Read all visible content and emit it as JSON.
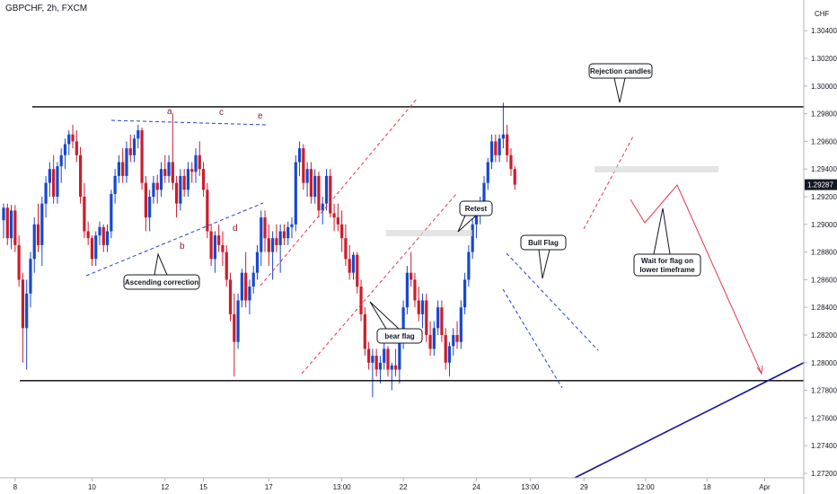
{
  "header": {
    "symbol_title": "GBPCHF, 2h, FXCM"
  },
  "chart_data": {
    "type": "candlestick",
    "symbol": "GBPCHF",
    "timeframe": "2h",
    "broker": "FXCM",
    "currency_label": "CHF",
    "last_price": 1.29287,
    "last_price_label": "1.29287",
    "ylim": [
      1.271,
      1.314
    ],
    "y_ticks": [
      1.272,
      1.274,
      1.276,
      1.278,
      1.28,
      1.282,
      1.284,
      1.286,
      1.288,
      1.29,
      1.292,
      1.294,
      1.296,
      1.298,
      1.3,
      1.302,
      1.304
    ],
    "y_tick_labels": [
      "1.27200",
      "1.27400",
      "1.27600",
      "1.27800",
      "1.28000",
      "1.28200",
      "1.28400",
      "1.28600",
      "1.28800",
      "1.29000",
      "1.29200",
      "1.29400",
      "1.29600",
      "1.29800",
      "1.30000",
      "1.30200",
      "1.30400"
    ],
    "x_ticks": [
      {
        "label": "8",
        "bar": 3
      },
      {
        "label": "10",
        "bar": 23
      },
      {
        "label": "12",
        "bar": 42
      },
      {
        "label": "15",
        "bar": 52
      },
      {
        "label": "17",
        "bar": 69
      },
      {
        "label": "13:00",
        "bar": 88
      },
      {
        "label": "22",
        "bar": 104
      },
      {
        "label": "24",
        "bar": 123
      },
      {
        "label": "13:00",
        "bar": 137
      },
      {
        "label": "29",
        "bar": 151
      },
      {
        "label": "12:00",
        "bar": 167
      },
      {
        "label": "18",
        "bar": 183
      },
      {
        "label": "Apr",
        "bar": 198
      }
    ],
    "candles": [
      [
        1.2903,
        1.2915,
        1.289,
        1.2912
      ],
      [
        1.2912,
        1.2915,
        1.2885,
        1.289
      ],
      [
        1.289,
        1.2914,
        1.2882,
        1.291
      ],
      [
        1.291,
        1.2914,
        1.288,
        1.2885
      ],
      [
        1.2885,
        1.2892,
        1.2855,
        1.286
      ],
      [
        1.286,
        1.2865,
        1.28,
        1.2825
      ],
      [
        1.2825,
        1.286,
        1.2795,
        1.285
      ],
      [
        1.285,
        1.288,
        1.284,
        1.2875
      ],
      [
        1.2875,
        1.2905,
        1.2865,
        1.29
      ],
      [
        1.29,
        1.2915,
        1.288,
        1.2885
      ],
      [
        1.2885,
        1.292,
        1.287,
        1.2915
      ],
      [
        1.2915,
        1.2935,
        1.2905,
        1.293
      ],
      [
        1.293,
        1.2945,
        1.292,
        1.294
      ],
      [
        1.294,
        1.295,
        1.2915,
        1.292
      ],
      [
        1.292,
        1.2945,
        1.2915,
        1.2942
      ],
      [
        1.2942,
        1.2955,
        1.293,
        1.295
      ],
      [
        1.295,
        1.2962,
        1.294,
        1.2958
      ],
      [
        1.2958,
        1.2968,
        1.295,
        1.2965
      ],
      [
        1.2965,
        1.2972,
        1.2955,
        1.296
      ],
      [
        1.296,
        1.2968,
        1.2945,
        1.295
      ],
      [
        1.295,
        1.2956,
        1.2915,
        1.292
      ],
      [
        1.292,
        1.293,
        1.289,
        1.2895
      ],
      [
        1.2895,
        1.2902,
        1.2885,
        1.289
      ],
      [
        1.289,
        1.2892,
        1.287,
        1.2875
      ],
      [
        1.2875,
        1.2895,
        1.287,
        1.2892
      ],
      [
        1.2892,
        1.2902,
        1.2885,
        1.2898
      ],
      [
        1.2898,
        1.29,
        1.288,
        1.2885
      ],
      [
        1.2885,
        1.29,
        1.288,
        1.2895
      ],
      [
        1.2895,
        1.2925,
        1.289,
        1.2922
      ],
      [
        1.2922,
        1.294,
        1.2915,
        1.2935
      ],
      [
        1.2935,
        1.295,
        1.293,
        1.2945
      ],
      [
        1.2945,
        1.2955,
        1.293,
        1.2935
      ],
      [
        1.2935,
        1.296,
        1.293,
        1.2955
      ],
      [
        1.2955,
        1.2965,
        1.2945,
        1.295
      ],
      [
        1.295,
        1.2965,
        1.2945,
        1.2962
      ],
      [
        1.2962,
        1.2972,
        1.2955,
        1.2968
      ],
      [
        1.2968,
        1.297,
        1.2925,
        1.293
      ],
      [
        1.293,
        1.2935,
        1.2895,
        1.2905
      ],
      [
        1.2905,
        1.2925,
        1.2895,
        1.292
      ],
      [
        1.292,
        1.2935,
        1.2915,
        1.293
      ],
      [
        1.293,
        1.2936,
        1.2915,
        1.2925
      ],
      [
        1.2925,
        1.2945,
        1.292,
        1.294
      ],
      [
        1.294,
        1.295,
        1.293,
        1.2935
      ],
      [
        1.2935,
        1.295,
        1.293,
        1.2945
      ],
      [
        1.2945,
        1.298,
        1.2925,
        1.293
      ],
      [
        1.293,
        1.2935,
        1.2905,
        1.2915
      ],
      [
        1.2915,
        1.294,
        1.291,
        1.2935
      ],
      [
        1.2935,
        1.294,
        1.292,
        1.2925
      ],
      [
        1.2925,
        1.2945,
        1.292,
        1.294
      ],
      [
        1.294,
        1.2945,
        1.293,
        1.2938
      ],
      [
        1.2938,
        1.2955,
        1.293,
        1.295
      ],
      [
        1.295,
        1.296,
        1.2935,
        1.294
      ],
      [
        1.294,
        1.2945,
        1.292,
        1.2925
      ],
      [
        1.2925,
        1.293,
        1.289,
        1.2895
      ],
      [
        1.2895,
        1.29,
        1.287,
        1.2875
      ],
      [
        1.2875,
        1.2895,
        1.2865,
        1.2892
      ],
      [
        1.2892,
        1.29,
        1.288,
        1.2885
      ],
      [
        1.2885,
        1.2895,
        1.287,
        1.288
      ],
      [
        1.288,
        1.2885,
        1.2855,
        1.286
      ],
      [
        1.286,
        1.2865,
        1.283,
        1.2835
      ],
      [
        1.2835,
        1.285,
        1.279,
        1.2815
      ],
      [
        1.2815,
        1.285,
        1.281,
        1.2845
      ],
      [
        1.2845,
        1.2868,
        1.284,
        1.2865
      ],
      [
        1.2865,
        1.288,
        1.284,
        1.2845
      ],
      [
        1.2845,
        1.286,
        1.2835,
        1.2855
      ],
      [
        1.2855,
        1.287,
        1.285,
        1.2865
      ],
      [
        1.2865,
        1.2885,
        1.286,
        1.288
      ],
      [
        1.288,
        1.291,
        1.287,
        1.2905
      ],
      [
        1.2905,
        1.291,
        1.288,
        1.289
      ],
      [
        1.289,
        1.29,
        1.287,
        1.288
      ],
      [
        1.288,
        1.2895,
        1.286,
        1.289
      ],
      [
        1.289,
        1.29,
        1.288,
        1.2885
      ],
      [
        1.2885,
        1.29,
        1.2865,
        1.2895
      ],
      [
        1.2895,
        1.29,
        1.2885,
        1.289
      ],
      [
        1.289,
        1.2902,
        1.2885,
        1.2898
      ],
      [
        1.2898,
        1.2905,
        1.289,
        1.29
      ],
      [
        1.29,
        1.295,
        1.2895,
        1.2945
      ],
      [
        1.2945,
        1.296,
        1.2935,
        1.2955
      ],
      [
        1.2955,
        1.2958,
        1.2925,
        1.293
      ],
      [
        1.293,
        1.2945,
        1.292,
        1.294
      ],
      [
        1.294,
        1.2945,
        1.2915,
        1.292
      ],
      [
        1.292,
        1.294,
        1.2915,
        1.2935
      ],
      [
        1.2935,
        1.2938,
        1.2905,
        1.291
      ],
      [
        1.291,
        1.292,
        1.29,
        1.2915
      ],
      [
        1.2915,
        1.294,
        1.291,
        1.2935
      ],
      [
        1.2935,
        1.294,
        1.2905,
        1.2908
      ],
      [
        1.2908,
        1.2915,
        1.2895,
        1.2905
      ],
      [
        1.2905,
        1.2915,
        1.2895,
        1.29
      ],
      [
        1.29,
        1.291,
        1.288,
        1.289
      ],
      [
        1.289,
        1.29,
        1.287,
        1.2875
      ],
      [
        1.2875,
        1.2885,
        1.286,
        1.2865
      ],
      [
        1.2865,
        1.288,
        1.286,
        1.2878
      ],
      [
        1.2878,
        1.288,
        1.285,
        1.2855
      ],
      [
        1.2855,
        1.286,
        1.283,
        1.2835
      ],
      [
        1.2835,
        1.284,
        1.2805,
        1.281
      ],
      [
        1.281,
        1.2815,
        1.2795,
        1.28
      ],
      [
        1.28,
        1.281,
        1.2775,
        1.2805
      ],
      [
        1.2805,
        1.281,
        1.279,
        1.2795
      ],
      [
        1.2795,
        1.2805,
        1.2785,
        1.28
      ],
      [
        1.28,
        1.2815,
        1.2795,
        1.281
      ],
      [
        1.281,
        1.2812,
        1.279,
        1.2795
      ],
      [
        1.2795,
        1.28,
        1.278,
        1.2798
      ],
      [
        1.2798,
        1.281,
        1.279,
        1.2795
      ],
      [
        1.2795,
        1.282,
        1.2785,
        1.2815
      ],
      [
        1.2815,
        1.2845,
        1.281,
        1.284
      ],
      [
        1.284,
        1.287,
        1.2835,
        1.2865
      ],
      [
        1.2865,
        1.288,
        1.2855,
        1.286
      ],
      [
        1.286,
        1.2865,
        1.284,
        1.2845
      ],
      [
        1.2845,
        1.2855,
        1.283,
        1.2835
      ],
      [
        1.2835,
        1.285,
        1.2825,
        1.2845
      ],
      [
        1.2845,
        1.285,
        1.2815,
        1.282
      ],
      [
        1.282,
        1.283,
        1.2805,
        1.281
      ],
      [
        1.281,
        1.283,
        1.2805,
        1.2825
      ],
      [
        1.2825,
        1.2845,
        1.282,
        1.284
      ],
      [
        1.284,
        1.2845,
        1.2815,
        1.282
      ],
      [
        1.282,
        1.2825,
        1.2795,
        1.28
      ],
      [
        1.28,
        1.2815,
        1.279,
        1.2812
      ],
      [
        1.2812,
        1.2825,
        1.2805,
        1.282
      ],
      [
        1.282,
        1.283,
        1.281,
        1.2815
      ],
      [
        1.2815,
        1.2845,
        1.281,
        1.284
      ],
      [
        1.284,
        1.2865,
        1.2835,
        1.286
      ],
      [
        1.286,
        1.2885,
        1.2855,
        1.288
      ],
      [
        1.288,
        1.2905,
        1.2875,
        1.29
      ],
      [
        1.29,
        1.2915,
        1.289,
        1.291
      ],
      [
        1.291,
        1.292,
        1.29,
        1.2915
      ],
      [
        1.2915,
        1.2935,
        1.291,
        1.293
      ],
      [
        1.293,
        1.2948,
        1.2925,
        1.2945
      ],
      [
        1.2945,
        1.2965,
        1.294,
        1.296
      ],
      [
        1.296,
        1.2965,
        1.2945,
        1.295
      ],
      [
        1.295,
        1.2965,
        1.2945,
        1.2962
      ],
      [
        1.2962,
        1.2988,
        1.2955,
        1.2965
      ],
      [
        1.2965,
        1.2972,
        1.2945,
        1.295
      ],
      [
        1.295,
        1.2955,
        1.2935,
        1.294
      ],
      [
        1.294,
        1.2942,
        1.2925,
        1.29287
      ]
    ]
  },
  "annotations": {
    "wave_labels": [
      "a",
      "b",
      "c",
      "d",
      "e"
    ],
    "callouts": {
      "ascending_correction": "Ascending correction",
      "bear_flag": "bear flag",
      "retest": "Retest",
      "bull_flag": "Bull Flag",
      "rejection_candles": "Rejection candles",
      "wait_line1": "Wait for flag on",
      "wait_line2": "lower timeframe"
    }
  },
  "colors": {
    "bull": "#1848cc",
    "bear": "#cc1c2b",
    "trendline_blue": "#2140c7",
    "channel_red": "#e8344e",
    "support_resistance": "#000000",
    "long_trendline": "#14148a"
  }
}
